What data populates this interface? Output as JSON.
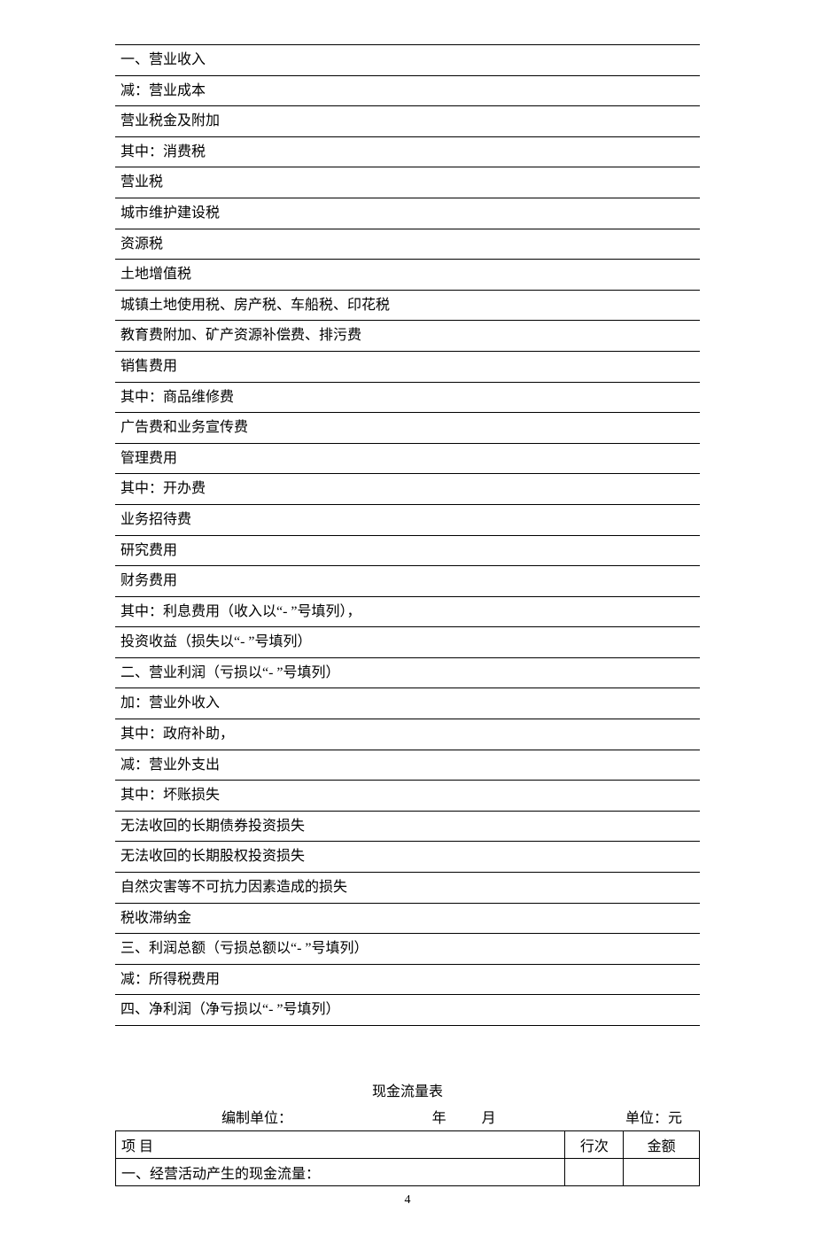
{
  "income_rows": [
    {
      "text": "一、营业收入",
      "indent": 0
    },
    {
      "text": "减：营业成本",
      "indent": 0
    },
    {
      "text": "营业税金及附加",
      "indent": 1
    },
    {
      "text": "其中：消费税",
      "indent": 2
    },
    {
      "text": "营业税",
      "indent": 3
    },
    {
      "text": "城市维护建设税",
      "indent": 3
    },
    {
      "text": "资源税",
      "indent": 3
    },
    {
      "text": "土地增值税",
      "indent": 3
    },
    {
      "text": "城镇土地使用税、房产税、车船税、印花税",
      "indent": 3
    },
    {
      "text": "教育费附加、矿产资源补偿费、排污费",
      "indent": 3
    },
    {
      "text": "销售费用",
      "indent": 1
    },
    {
      "text": "其中：商品维修费",
      "indent": 2
    },
    {
      "text": "广告费和业务宣传费",
      "indent": 3
    },
    {
      "text": "管理费用",
      "indent": 1
    },
    {
      "text": "其中：开办费",
      "indent": 2
    },
    {
      "text": "业务招待费",
      "indent": 3
    },
    {
      "text": "研究费用",
      "indent": 3
    },
    {
      "text": "财务费用",
      "indent": 1
    },
    {
      "text": "其中：利息费用（收入以“- ”号填列），",
      "indent": 2
    },
    {
      "text": "投资收益（损失以“- ”号填列）",
      "indent": 1
    },
    {
      "text": "二、营业利润（亏损以“- ”号填列）",
      "indent": 0
    },
    {
      "text": "加：营业外收入",
      "indent": 0
    },
    {
      "text": "其中：政府补助，",
      "indent": 2
    },
    {
      "text": "减：营业外支出",
      "indent": 0
    },
    {
      "text": "其中：坏账损失",
      "indent": 2
    },
    {
      "text": "无法收回的长期债券投资损失",
      "indent": 3
    },
    {
      "text": "无法收回的长期股权投资损失",
      "indent": 3
    },
    {
      "text": "自然灾害等不可抗力因素造成的损失",
      "indent": 3
    },
    {
      "text": "税收滞纳金",
      "indent": 3
    },
    {
      "text": "三、利润总额（亏损总额以“- ”号填列）",
      "indent": 0
    },
    {
      "text": "减：所得税费用",
      "indent": 0
    },
    {
      "text": "四、净利润（净亏损以“- ”号填列）",
      "indent": 0
    }
  ],
  "cashflow": {
    "title": "现金流量表",
    "meta": {
      "org_label": "编制单位：",
      "year_label": "年",
      "month_label": "月",
      "unit_label": "单位：元"
    },
    "headers": {
      "item": "项            目",
      "lineno": "行次",
      "amount": "金额"
    },
    "first_row": "一、经营活动产生的现金流量："
  },
  "page_number": "4"
}
